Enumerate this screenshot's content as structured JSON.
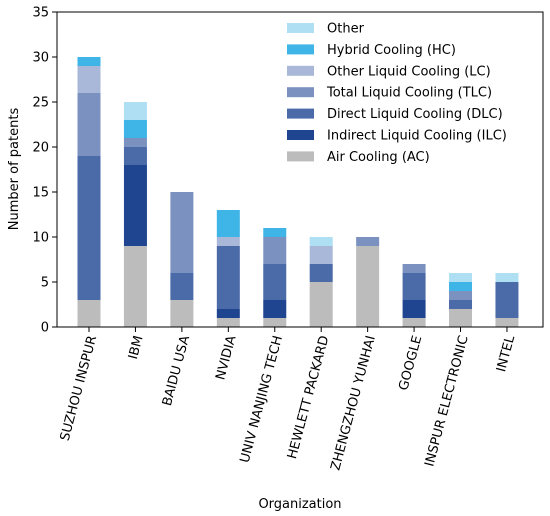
{
  "chart_data": {
    "type": "bar",
    "stacked": true,
    "xlabel": "Organization",
    "ylabel": "Number of patents",
    "ylim": [
      0,
      35
    ],
    "yticks": [
      0,
      5,
      10,
      15,
      20,
      25,
      30,
      35
    ],
    "grid": false,
    "legend_position": "top-right",
    "categories": [
      "SUZHOU INSPUR",
      "IBM",
      "BAIDU USA",
      "NVIDIA",
      "UNIV NANJING TECH",
      "HEWLETT PACKARD",
      "ZHENGZHOU YUNHAI",
      "GOOGLE",
      "INSPUR ELECTRONIC",
      "INTEL"
    ],
    "series": [
      {
        "name": "Air Cooling (AC)",
        "color": "#bcbcbc",
        "values": [
          3,
          9,
          3,
          1,
          1,
          5,
          9,
          1,
          2,
          1
        ]
      },
      {
        "name": "Indirect Liquid Cooling (ILC)",
        "color": "#1f4590",
        "values": [
          0,
          9,
          0,
          1,
          2,
          0,
          0,
          2,
          0,
          0
        ]
      },
      {
        "name": "Direct Liquid Cooling (DLC)",
        "color": "#4a6aa8",
        "values": [
          16,
          2,
          3,
          7,
          4,
          2,
          0,
          3,
          1,
          4
        ]
      },
      {
        "name": "Total Liquid Cooling (TLC)",
        "color": "#7b92c0",
        "values": [
          7,
          1,
          9,
          0,
          3,
          0,
          1,
          1,
          1,
          0
        ]
      },
      {
        "name": "Other Liquid Cooling (LC)",
        "color": "#a9b8d8",
        "values": [
          3,
          0,
          0,
          1,
          0,
          2,
          0,
          0,
          0,
          0
        ]
      },
      {
        "name": "Hybrid Cooling (HC)",
        "color": "#3eb5e6",
        "values": [
          1,
          2,
          0,
          3,
          1,
          0,
          0,
          0,
          1,
          0
        ]
      },
      {
        "name": "Other",
        "color": "#aedff3",
        "values": [
          0,
          2,
          0,
          0,
          0,
          1,
          0,
          0,
          1,
          1
        ]
      }
    ]
  }
}
